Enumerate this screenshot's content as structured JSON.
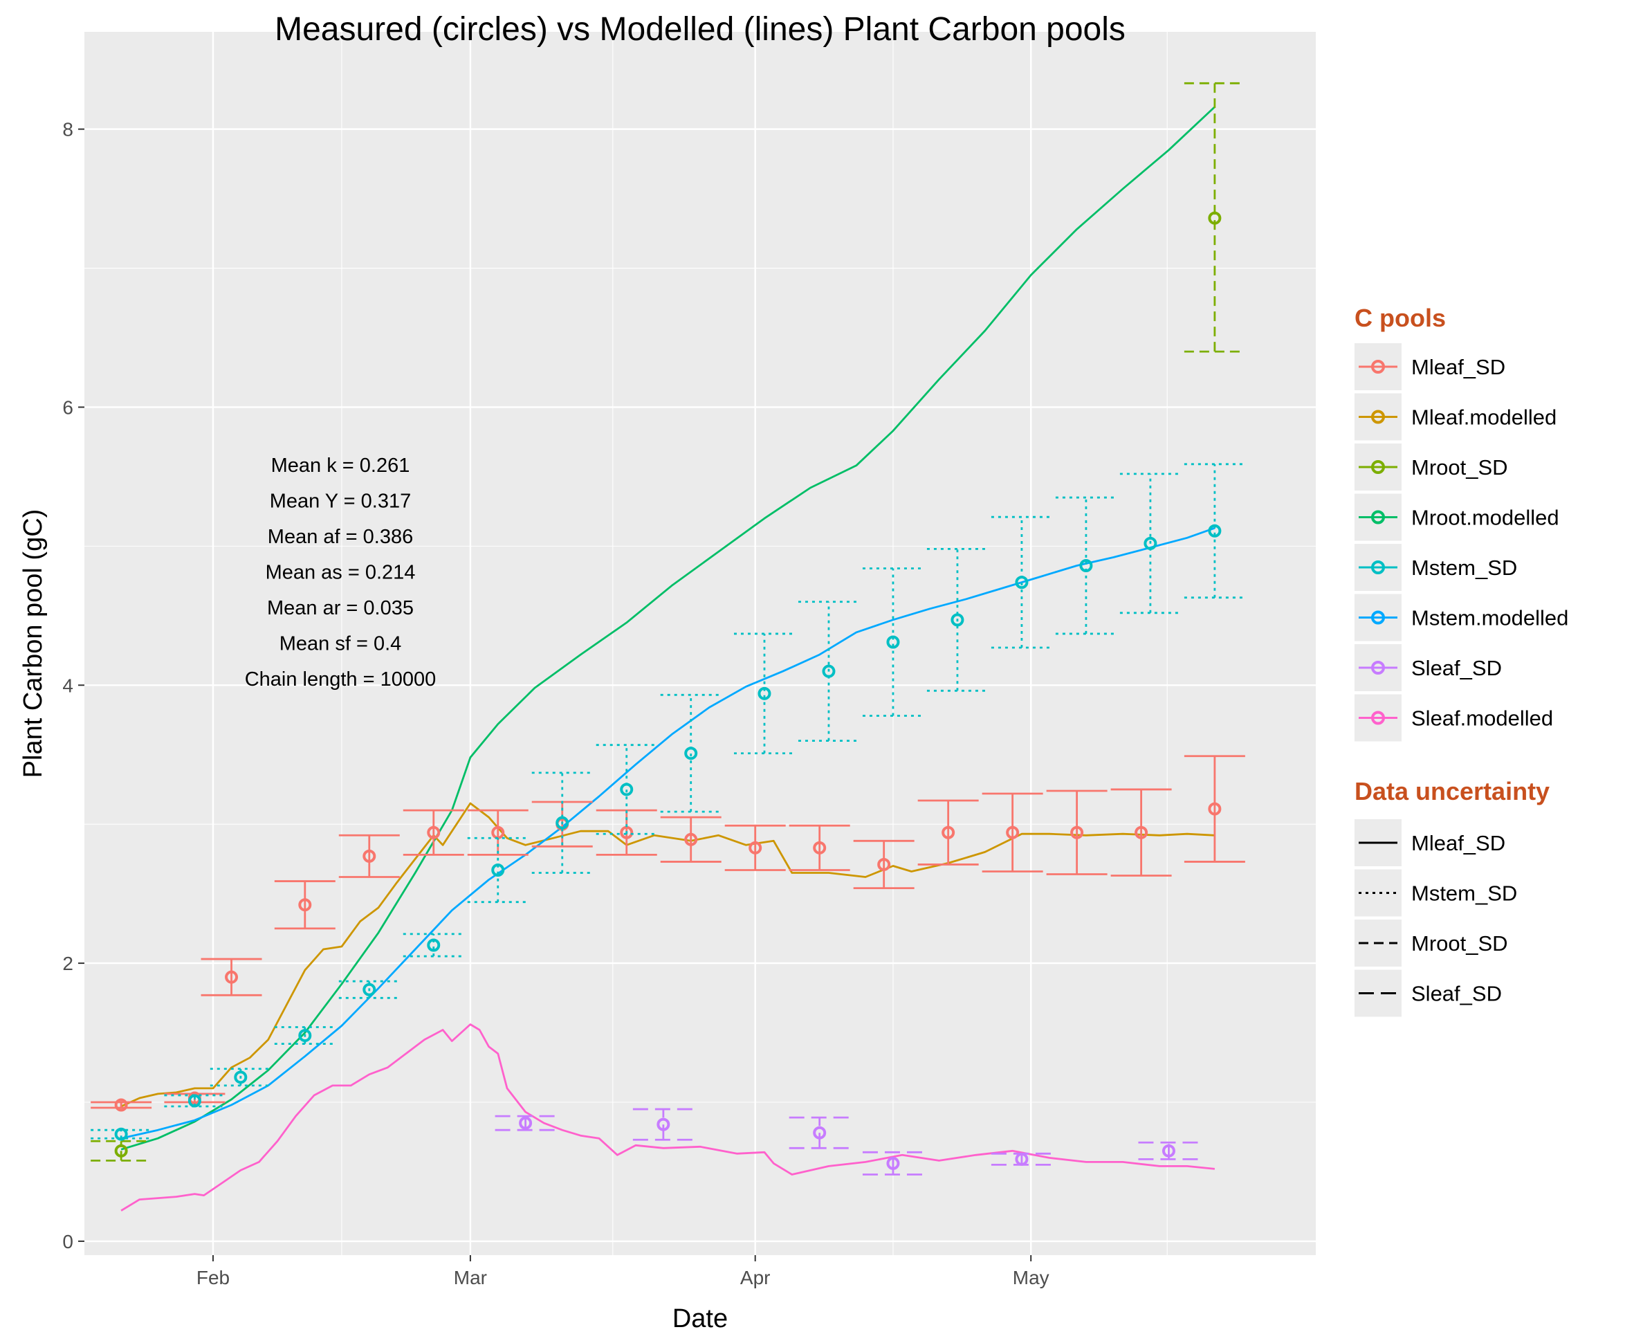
{
  "chart_data": {
    "type": "line",
    "title": "Measured (circles) vs Modelled (lines) Plant Carbon pools",
    "xlabel": "Date",
    "ylabel": "Plant Carbon pool (gC)",
    "x_tick_labels": [
      "Feb",
      "Mar",
      "Apr",
      "May"
    ],
    "x_ticks": [
      "2013-02-01",
      "2013-03-01",
      "2013-04-01",
      "2013-05-01"
    ],
    "xlim": [
      "2013-01-18",
      "2013-06-01"
    ],
    "ylim": [
      -0.1,
      8.7
    ],
    "y_ticks": [
      0,
      2,
      4,
      6,
      8
    ],
    "y_tick_labels": [
      "0",
      "2",
      "4",
      "6",
      "8"
    ],
    "grid": true,
    "legend_placement": "right",
    "annotations": [
      "Mean k =  0.261",
      "Mean Y =  0.317",
      "Mean af =  0.386",
      "Mean as =  0.214",
      "Mean ar =  0.035",
      "Mean sf =  0.4",
      "Chain length =  10000"
    ],
    "legend_pools_title": "C pools",
    "legend_pools": [
      {
        "label": "Mleaf_SD",
        "color": "#F8766D"
      },
      {
        "label": "Mleaf.modelled",
        "color": "#CD9600"
      },
      {
        "label": "Mroot_SD",
        "color": "#7CAE00"
      },
      {
        "label": "Mroot.modelled",
        "color": "#00BE67"
      },
      {
        "label": "Mstem_SD",
        "color": "#00BFC4"
      },
      {
        "label": "Mstem.modelled",
        "color": "#00A9FF"
      },
      {
        "label": "Sleaf_SD",
        "color": "#C77CFF"
      },
      {
        "label": "Sleaf.modelled",
        "color": "#FF61CC"
      }
    ],
    "legend_unc_title": "Data uncertainty",
    "legend_unc": [
      {
        "label": "Mleaf_SD",
        "dash": "solid"
      },
      {
        "label": "Mstem_SD",
        "dash": "dotted"
      },
      {
        "label": "Mroot_SD",
        "dash": "dashed"
      },
      {
        "label": "Sleaf_SD",
        "dash": "longdash"
      }
    ],
    "legend_title_color": "#C8501E",
    "lines": [
      {
        "name": "Mleaf.modelled",
        "color": "#CD9600",
        "points": [
          [
            "2013-01-22",
            0.97
          ],
          [
            "2013-01-24",
            1.03
          ],
          [
            "2013-01-26",
            1.06
          ],
          [
            "2013-01-28",
            1.07
          ],
          [
            "2013-01-30",
            1.1
          ],
          [
            "2013-02-01",
            1.1
          ],
          [
            "2013-02-03",
            1.25
          ],
          [
            "2013-02-05",
            1.32
          ],
          [
            "2013-02-07",
            1.45
          ],
          [
            "2013-02-09",
            1.7
          ],
          [
            "2013-02-11",
            1.95
          ],
          [
            "2013-02-13",
            2.1
          ],
          [
            "2013-02-15",
            2.12
          ],
          [
            "2013-02-17",
            2.3
          ],
          [
            "2013-02-19",
            2.4
          ],
          [
            "2013-02-21",
            2.58
          ],
          [
            "2013-02-23",
            2.75
          ],
          [
            "2013-02-25",
            2.92
          ],
          [
            "2013-02-26",
            2.85
          ],
          [
            "2013-02-28",
            3.05
          ],
          [
            "2013-03-01",
            3.15
          ],
          [
            "2013-03-03",
            3.05
          ],
          [
            "2013-03-05",
            2.9
          ],
          [
            "2013-03-07",
            2.85
          ],
          [
            "2013-03-10",
            2.9
          ],
          [
            "2013-03-13",
            2.95
          ],
          [
            "2013-03-16",
            2.95
          ],
          [
            "2013-03-18",
            2.85
          ],
          [
            "2013-03-21",
            2.92
          ],
          [
            "2013-03-25",
            2.88
          ],
          [
            "2013-03-28",
            2.92
          ],
          [
            "2013-03-31",
            2.85
          ],
          [
            "2013-04-03",
            2.88
          ],
          [
            "2013-04-05",
            2.65
          ],
          [
            "2013-04-09",
            2.65
          ],
          [
            "2013-04-13",
            2.62
          ],
          [
            "2013-04-16",
            2.7
          ],
          [
            "2013-04-18",
            2.66
          ],
          [
            "2013-04-22",
            2.72
          ],
          [
            "2013-04-26",
            2.8
          ],
          [
            "2013-04-30",
            2.93
          ],
          [
            "2013-05-03",
            2.93
          ],
          [
            "2013-05-07",
            2.92
          ],
          [
            "2013-05-11",
            2.93
          ],
          [
            "2013-05-15",
            2.92
          ],
          [
            "2013-05-18",
            2.93
          ],
          [
            "2013-05-21",
            2.92
          ]
        ]
      },
      {
        "name": "Mroot.modelled",
        "color": "#00BE67",
        "points": [
          [
            "2013-01-22",
            0.66
          ],
          [
            "2013-01-26",
            0.74
          ],
          [
            "2013-01-30",
            0.86
          ],
          [
            "2013-02-03",
            1.02
          ],
          [
            "2013-02-07",
            1.23
          ],
          [
            "2013-02-11",
            1.5
          ],
          [
            "2013-02-15",
            1.85
          ],
          [
            "2013-02-19",
            2.22
          ],
          [
            "2013-02-23",
            2.65
          ],
          [
            "2013-02-27",
            3.1
          ],
          [
            "2013-03-01",
            3.48
          ],
          [
            "2013-03-04",
            3.72
          ],
          [
            "2013-03-08",
            3.98
          ],
          [
            "2013-03-13",
            4.22
          ],
          [
            "2013-03-18",
            4.45
          ],
          [
            "2013-03-23",
            4.72
          ],
          [
            "2013-03-28",
            4.96
          ],
          [
            "2013-04-02",
            5.2
          ],
          [
            "2013-04-07",
            5.42
          ],
          [
            "2013-04-12",
            5.58
          ],
          [
            "2013-04-16",
            5.83
          ],
          [
            "2013-04-21",
            6.2
          ],
          [
            "2013-04-26",
            6.55
          ],
          [
            "2013-05-01",
            6.95
          ],
          [
            "2013-05-06",
            7.28
          ],
          [
            "2013-05-11",
            7.57
          ],
          [
            "2013-05-16",
            7.85
          ],
          [
            "2013-05-21",
            8.16
          ]
        ]
      },
      {
        "name": "Mstem.modelled",
        "color": "#00A9FF",
        "points": [
          [
            "2013-01-22",
            0.74
          ],
          [
            "2013-01-26",
            0.8
          ],
          [
            "2013-01-30",
            0.87
          ],
          [
            "2013-02-03",
            0.98
          ],
          [
            "2013-02-07",
            1.12
          ],
          [
            "2013-02-11",
            1.33
          ],
          [
            "2013-02-15",
            1.55
          ],
          [
            "2013-02-19",
            1.82
          ],
          [
            "2013-02-23",
            2.1
          ],
          [
            "2013-02-27",
            2.38
          ],
          [
            "2013-03-03",
            2.6
          ],
          [
            "2013-03-07",
            2.78
          ],
          [
            "2013-03-11",
            2.98
          ],
          [
            "2013-03-15",
            3.2
          ],
          [
            "2013-03-19",
            3.43
          ],
          [
            "2013-03-23",
            3.65
          ],
          [
            "2013-03-27",
            3.84
          ],
          [
            "2013-03-31",
            3.99
          ],
          [
            "2013-04-04",
            4.1
          ],
          [
            "2013-04-08",
            4.22
          ],
          [
            "2013-04-12",
            4.38
          ],
          [
            "2013-04-16",
            4.47
          ],
          [
            "2013-04-20",
            4.55
          ],
          [
            "2013-04-24",
            4.62
          ],
          [
            "2013-04-28",
            4.7
          ],
          [
            "2013-05-02",
            4.78
          ],
          [
            "2013-05-06",
            4.86
          ],
          [
            "2013-05-10",
            4.92
          ],
          [
            "2013-05-14",
            4.99
          ],
          [
            "2013-05-18",
            5.06
          ],
          [
            "2013-05-21",
            5.13
          ]
        ]
      },
      {
        "name": "Sleaf.modelled",
        "color": "#FF61CC",
        "points": [
          [
            "2013-01-22",
            0.22
          ],
          [
            "2013-01-24",
            0.3
          ],
          [
            "2013-01-26",
            0.31
          ],
          [
            "2013-01-28",
            0.32
          ],
          [
            "2013-01-30",
            0.34
          ],
          [
            "2013-01-31",
            0.33
          ],
          [
            "2013-02-02",
            0.42
          ],
          [
            "2013-02-04",
            0.51
          ],
          [
            "2013-02-06",
            0.57
          ],
          [
            "2013-02-08",
            0.72
          ],
          [
            "2013-02-10",
            0.9
          ],
          [
            "2013-02-12",
            1.05
          ],
          [
            "2013-02-14",
            1.12
          ],
          [
            "2013-02-16",
            1.12
          ],
          [
            "2013-02-18",
            1.2
          ],
          [
            "2013-02-20",
            1.25
          ],
          [
            "2013-02-22",
            1.35
          ],
          [
            "2013-02-24",
            1.45
          ],
          [
            "2013-02-26",
            1.52
          ],
          [
            "2013-02-27",
            1.44
          ],
          [
            "2013-02-28",
            1.5
          ],
          [
            "2013-03-01",
            1.56
          ],
          [
            "2013-03-02",
            1.52
          ],
          [
            "2013-03-03",
            1.4
          ],
          [
            "2013-03-04",
            1.35
          ],
          [
            "2013-03-05",
            1.1
          ],
          [
            "2013-03-07",
            0.93
          ],
          [
            "2013-03-09",
            0.85
          ],
          [
            "2013-03-11",
            0.8
          ],
          [
            "2013-03-13",
            0.76
          ],
          [
            "2013-03-15",
            0.74
          ],
          [
            "2013-03-17",
            0.62
          ],
          [
            "2013-03-19",
            0.69
          ],
          [
            "2013-03-22",
            0.67
          ],
          [
            "2013-03-26",
            0.68
          ],
          [
            "2013-03-30",
            0.63
          ],
          [
            "2013-04-02",
            0.64
          ],
          [
            "2013-04-03",
            0.56
          ],
          [
            "2013-04-05",
            0.48
          ],
          [
            "2013-04-09",
            0.54
          ],
          [
            "2013-04-13",
            0.57
          ],
          [
            "2013-04-17",
            0.62
          ],
          [
            "2013-04-21",
            0.58
          ],
          [
            "2013-04-25",
            0.62
          ],
          [
            "2013-04-29",
            0.65
          ],
          [
            "2013-05-03",
            0.6
          ],
          [
            "2013-05-07",
            0.57
          ],
          [
            "2013-05-11",
            0.57
          ],
          [
            "2013-05-15",
            0.54
          ],
          [
            "2013-05-18",
            0.54
          ],
          [
            "2013-05-21",
            0.52
          ]
        ]
      }
    ],
    "measured": [
      {
        "name": "Mleaf_SD",
        "color": "#F8766D",
        "dash": "solid",
        "points": [
          {
            "x": "2013-01-22",
            "y": 0.98,
            "lo": 0.96,
            "hi": 1.0
          },
          {
            "x": "2013-01-30",
            "y": 1.03,
            "lo": 1.0,
            "hi": 1.06
          },
          {
            "x": "2013-02-03",
            "y": 1.9,
            "lo": 1.77,
            "hi": 2.03
          },
          {
            "x": "2013-02-11",
            "y": 2.42,
            "lo": 2.25,
            "hi": 2.59
          },
          {
            "x": "2013-02-18",
            "y": 2.77,
            "lo": 2.62,
            "hi": 2.92
          },
          {
            "x": "2013-02-25",
            "y": 2.94,
            "lo": 2.78,
            "hi": 3.1
          },
          {
            "x": "2013-03-04",
            "y": 2.94,
            "lo": 2.78,
            "hi": 3.1
          },
          {
            "x": "2013-03-11",
            "y": 3.0,
            "lo": 2.84,
            "hi": 3.16
          },
          {
            "x": "2013-03-18",
            "y": 2.94,
            "lo": 2.78,
            "hi": 3.1
          },
          {
            "x": "2013-03-25",
            "y": 2.89,
            "lo": 2.73,
            "hi": 3.05
          },
          {
            "x": "2013-04-01",
            "y": 2.83,
            "lo": 2.67,
            "hi": 2.99
          },
          {
            "x": "2013-04-08",
            "y": 2.83,
            "lo": 2.67,
            "hi": 2.99
          },
          {
            "x": "2013-04-15",
            "y": 2.71,
            "lo": 2.54,
            "hi": 2.88
          },
          {
            "x": "2013-04-22",
            "y": 2.94,
            "lo": 2.71,
            "hi": 3.17
          },
          {
            "x": "2013-04-29",
            "y": 2.94,
            "lo": 2.66,
            "hi": 3.22
          },
          {
            "x": "2013-05-06",
            "y": 2.94,
            "lo": 2.64,
            "hi": 3.24
          },
          {
            "x": "2013-05-13",
            "y": 2.94,
            "lo": 2.63,
            "hi": 3.25
          },
          {
            "x": "2013-05-21",
            "y": 3.11,
            "lo": 2.73,
            "hi": 3.49
          }
        ]
      },
      {
        "name": "Mroot_SD",
        "color": "#7CAE00",
        "dash": "dashed",
        "points": [
          {
            "x": "2013-01-22",
            "y": 0.65,
            "lo": 0.58,
            "hi": 0.72
          },
          {
            "x": "2013-05-21",
            "y": 7.36,
            "lo": 6.4,
            "hi": 8.33
          }
        ]
      },
      {
        "name": "Mstem_SD",
        "color": "#00BFC4",
        "dash": "dotted",
        "points": [
          {
            "x": "2013-01-22",
            "y": 0.77,
            "lo": 0.74,
            "hi": 0.8
          },
          {
            "x": "2013-01-30",
            "y": 1.01,
            "lo": 0.97,
            "hi": 1.05
          },
          {
            "x": "2013-02-04",
            "y": 1.18,
            "lo": 1.12,
            "hi": 1.24
          },
          {
            "x": "2013-02-11",
            "y": 1.48,
            "lo": 1.42,
            "hi": 1.54
          },
          {
            "x": "2013-02-18",
            "y": 1.81,
            "lo": 1.75,
            "hi": 1.87
          },
          {
            "x": "2013-02-25",
            "y": 2.13,
            "lo": 2.05,
            "hi": 2.21
          },
          {
            "x": "2013-03-04",
            "y": 2.67,
            "lo": 2.44,
            "hi": 2.9
          },
          {
            "x": "2013-03-11",
            "y": 3.01,
            "lo": 2.65,
            "hi": 3.37
          },
          {
            "x": "2013-03-18",
            "y": 3.25,
            "lo": 2.93,
            "hi": 3.57
          },
          {
            "x": "2013-03-25",
            "y": 3.51,
            "lo": 3.09,
            "hi": 3.93
          },
          {
            "x": "2013-04-02",
            "y": 3.94,
            "lo": 3.51,
            "hi": 4.37
          },
          {
            "x": "2013-04-09",
            "y": 4.1,
            "lo": 3.6,
            "hi": 4.6
          },
          {
            "x": "2013-04-16",
            "y": 4.31,
            "lo": 3.78,
            "hi": 4.84
          },
          {
            "x": "2013-04-23",
            "y": 4.47,
            "lo": 3.96,
            "hi": 4.98
          },
          {
            "x": "2013-04-30",
            "y": 4.74,
            "lo": 4.27,
            "hi": 5.21
          },
          {
            "x": "2013-05-07",
            "y": 4.86,
            "lo": 4.37,
            "hi": 5.35
          },
          {
            "x": "2013-05-14",
            "y": 5.02,
            "lo": 4.52,
            "hi": 5.52
          },
          {
            "x": "2013-05-21",
            "y": 5.11,
            "lo": 4.63,
            "hi": 5.59
          }
        ]
      },
      {
        "name": "Sleaf_SD",
        "color": "#C77CFF",
        "dash": "longdash",
        "points": [
          {
            "x": "2013-03-07",
            "y": 0.85,
            "lo": 0.8,
            "hi": 0.9
          },
          {
            "x": "2013-03-22",
            "y": 0.84,
            "lo": 0.73,
            "hi": 0.95
          },
          {
            "x": "2013-04-08",
            "y": 0.78,
            "lo": 0.67,
            "hi": 0.89
          },
          {
            "x": "2013-04-16",
            "y": 0.56,
            "lo": 0.48,
            "hi": 0.64
          },
          {
            "x": "2013-04-30",
            "y": 0.59,
            "lo": 0.55,
            "hi": 0.63
          },
          {
            "x": "2013-05-16",
            "y": 0.65,
            "lo": 0.59,
            "hi": 0.71
          }
        ]
      }
    ]
  }
}
